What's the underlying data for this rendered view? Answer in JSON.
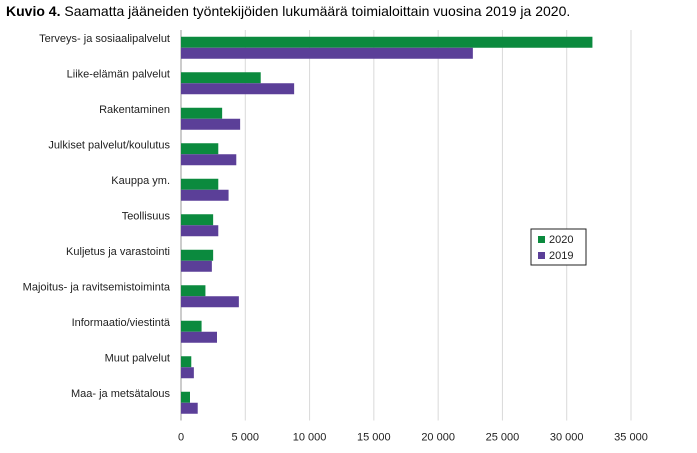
{
  "title": {
    "label": "Kuvio 4.",
    "text": "Saamatta jääneiden työntekijöiden lukumäärä toimialoittain vuosina 2019 ja 2020."
  },
  "colors": {
    "2020": "#0b8a3e",
    "2019": "#5b3f98"
  },
  "chart_data": {
    "type": "bar",
    "orientation": "horizontal",
    "categories": [
      "Terveys- ja sosiaalipalvelut",
      "Liike-elämän palvelut",
      "Rakentaminen",
      "Julkiset palvelut/koulutus",
      "Kauppa ym.",
      "Teollisuus",
      "Kuljetus ja varastointi",
      "Majoitus- ja ravitsemistoiminta",
      "Informaatio/viestintä",
      "Muut palvelut",
      "Maa- ja metsätalous"
    ],
    "series": [
      {
        "name": "2020",
        "values": [
          32000,
          6200,
          3200,
          2900,
          2900,
          2500,
          2500,
          1900,
          1600,
          800,
          700
        ]
      },
      {
        "name": "2019",
        "values": [
          22700,
          8800,
          4600,
          4300,
          3700,
          2900,
          2400,
          4500,
          2800,
          1000,
          1300
        ]
      }
    ],
    "xlim": [
      0,
      35000
    ],
    "xticks": [
      0,
      5000,
      10000,
      15000,
      20000,
      25000,
      30000,
      35000
    ],
    "xtick_labels": [
      "0",
      "5 000",
      "10 000",
      "15 000",
      "20 000",
      "25 000",
      "30 000",
      "35 000"
    ],
    "grid": "vertical",
    "legend_position": "right",
    "legend": [
      "2020",
      "2019"
    ]
  }
}
